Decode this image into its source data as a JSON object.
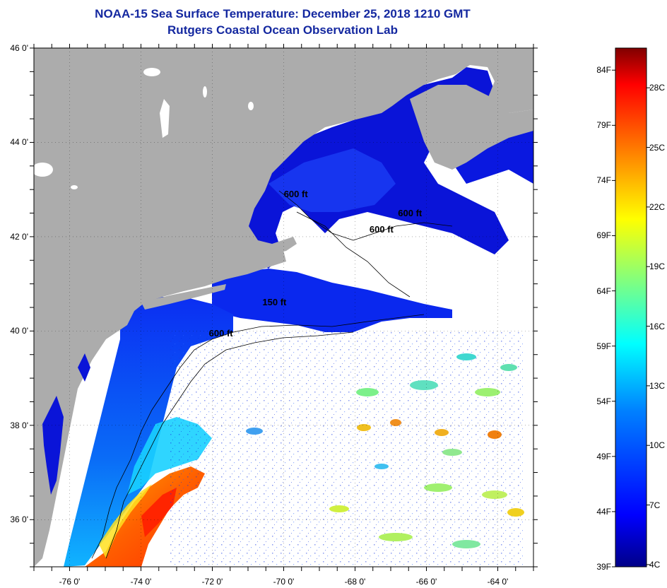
{
  "title": "NOAA-15 Sea Surface Temperature:  December 25, 2018 1210 GMT",
  "subtitle": "Rutgers Coastal Ocean Observation Lab",
  "map": {
    "lon_range": [
      -77,
      -63
    ],
    "lat_range": [
      35,
      46
    ],
    "lat_labels": [
      {
        "lat": 46,
        "text": "46 0'"
      },
      {
        "lat": 44,
        "text": "44 0'"
      },
      {
        "lat": 42,
        "text": "42 0'"
      },
      {
        "lat": 40,
        "text": "40 0'"
      },
      {
        "lat": 38,
        "text": "38 0'"
      },
      {
        "lat": 36,
        "text": "36 0'"
      }
    ],
    "lon_labels": [
      {
        "lon": -76,
        "text": "-76 0'"
      },
      {
        "lon": -74,
        "text": "-74 0'"
      },
      {
        "lon": -72,
        "text": "-72 0'"
      },
      {
        "lon": -70,
        "text": "-70 0'"
      },
      {
        "lon": -68,
        "text": "-68 0'"
      },
      {
        "lon": -66,
        "text": "-66 0'"
      },
      {
        "lon": -64,
        "text": "-64 0'"
      }
    ],
    "contour_labels": [
      {
        "text": "600 ft",
        "lon": -69.6,
        "lat": 42.9
      },
      {
        "text": "600 ft",
        "lon": -66.4,
        "lat": 42.5
      },
      {
        "text": "600 ft",
        "lon": -67.2,
        "lat": 42.15
      },
      {
        "text": "150 ft",
        "lon": -70.2,
        "lat": 40.6
      },
      {
        "text": "600 ft",
        "lon": -71.7,
        "lat": 39.95
      }
    ],
    "colors": {
      "land": "#acacac",
      "cloud": "#ffffff",
      "frame": "#000000",
      "contour": "#000000"
    }
  },
  "colorbar": {
    "range_f": [
      39,
      86
    ],
    "f_labels": [
      "84F",
      "79F",
      "74F",
      "69F",
      "64F",
      "59F",
      "54F",
      "49F",
      "44F",
      "39F"
    ],
    "c_labels": [
      "28C",
      "25C",
      "22C",
      "19C",
      "16C",
      "13C",
      "10C",
      "7C",
      "4C"
    ],
    "c_values": [
      28,
      25,
      22,
      19,
      16,
      13,
      10,
      7,
      4
    ],
    "stops": [
      "#000088",
      "#0000ff",
      "#0080ff",
      "#00ffff",
      "#80ff80",
      "#ffff00",
      "#ff8000",
      "#ff0000",
      "#800000"
    ]
  }
}
